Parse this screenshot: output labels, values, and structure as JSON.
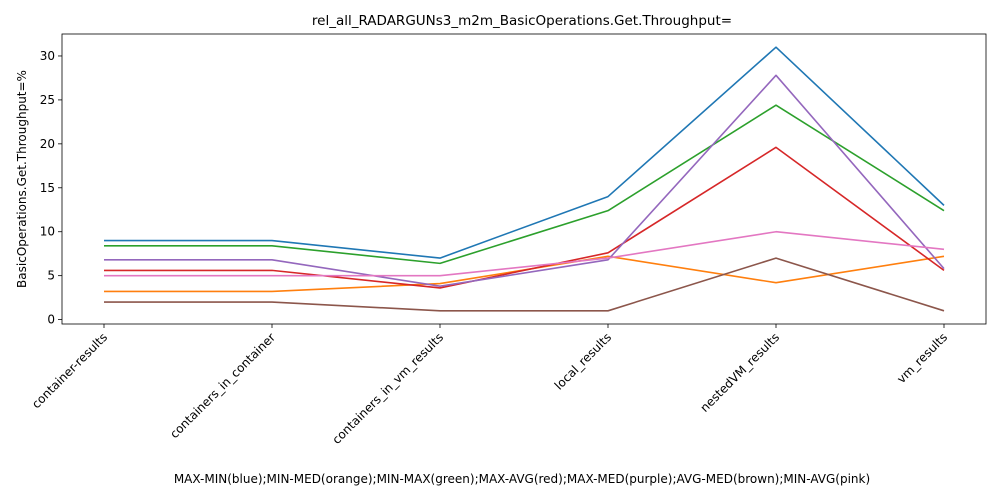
{
  "chart_data": {
    "type": "line",
    "title": "rel_all_RADARGUNs3_m2m_BasicOperations.Get.Throughput=",
    "xlabel": "MAX-MIN(blue);MIN-MED(orange);MIN-MAX(green);MAX-AVG(red);MAX-MED(purple);AVG-MED(brown);MIN-AVG(pink)",
    "ylabel": "BasicOperations.Get.Throughput=%",
    "categories": [
      "container-results",
      "containers_in_container",
      "containers_in_vm_results",
      "local_results",
      "nestedVM_results",
      "vm_results"
    ],
    "ylim": [
      -0.5,
      32.5
    ],
    "yticks": [
      0,
      5,
      10,
      15,
      20,
      25,
      30
    ],
    "grid": false,
    "legend": "none",
    "series": [
      {
        "color": "#1f77b4",
        "values": [
          9.0,
          9.0,
          7.0,
          14.0,
          31.0,
          13.0
        ]
      },
      {
        "color": "#ff7f0e",
        "values": [
          3.2,
          3.2,
          4.1,
          7.2,
          4.2,
          7.2
        ]
      },
      {
        "color": "#2ca02c",
        "values": [
          8.4,
          8.4,
          6.4,
          12.4,
          24.4,
          12.4
        ]
      },
      {
        "color": "#d62728",
        "values": [
          5.6,
          5.6,
          3.6,
          7.6,
          19.6,
          5.6
        ]
      },
      {
        "color": "#9467bd",
        "values": [
          6.8,
          6.8,
          3.8,
          6.8,
          27.8,
          5.8
        ]
      },
      {
        "color": "#8c564b",
        "values": [
          2.0,
          2.0,
          1.0,
          1.0,
          7.0,
          1.0
        ]
      },
      {
        "color": "#e377c2",
        "values": [
          5.0,
          5.0,
          5.0,
          7.0,
          10.0,
          8.0
        ]
      }
    ]
  }
}
